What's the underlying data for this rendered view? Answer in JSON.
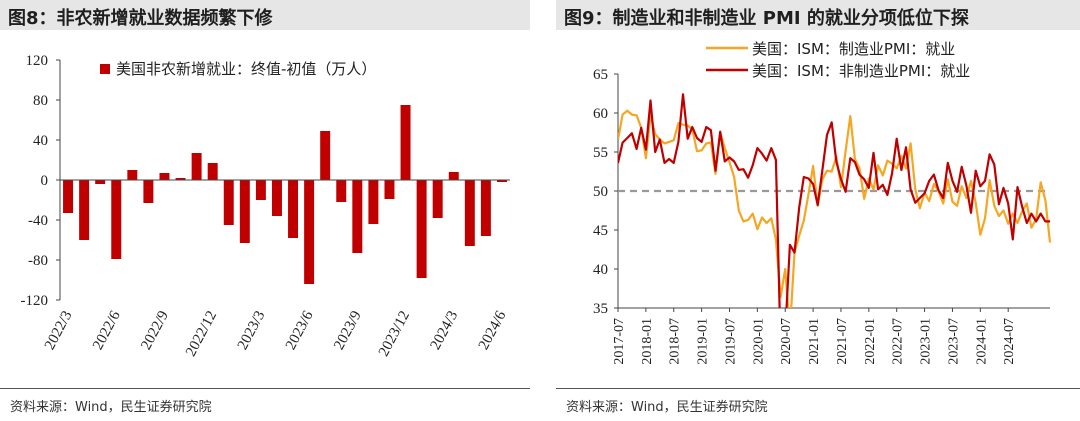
{
  "chart_data": [
    {
      "type": "bar",
      "title": "图8：非农新增就业数据频繁下修",
      "legend": "美国非农新增就业：终值-初值（万人）",
      "legend_position": "top",
      "source": "资料来源：Wind，民生证券研究院",
      "ylim": [
        -120,
        120
      ],
      "yticks": [
        "120",
        "80",
        "40",
        "0",
        "-40",
        "-80",
        "-120"
      ],
      "color": "#c00000",
      "categories": [
        "2022/3",
        "2022/4",
        "2022/5",
        "2022/6",
        "2022/7",
        "2022/8",
        "2022/9",
        "2022/10",
        "2022/11",
        "2022/12",
        "2023/1",
        "2023/2",
        "2023/3",
        "2023/4",
        "2023/5",
        "2023/6",
        "2023/7",
        "2023/8",
        "2023/9",
        "2023/10",
        "2023/11",
        "2023/12",
        "2024/1",
        "2024/2",
        "2024/3",
        "2024/4",
        "2024/5",
        "2024/6"
      ],
      "x_tick_labels": [
        "2022/3",
        "2022/6",
        "2022/9",
        "2022/12",
        "2023/3",
        "2023/6",
        "2023/9",
        "2023/12",
        "2024/3",
        "2024/6"
      ],
      "values": [
        -33,
        -60,
        -4,
        -79,
        10,
        -23,
        7,
        2,
        27,
        17,
        -45,
        -63,
        -20,
        -36,
        -58,
        -104,
        49,
        -22,
        -73,
        -44,
        -19,
        75,
        -98,
        -38,
        8,
        -66,
        -56,
        -2
      ]
    },
    {
      "type": "line",
      "title": "图9：制造业和非制造业 PMI 的就业分项低位下探",
      "source": "资料来源：Wind，民生证券研究院",
      "legend_position": "top",
      "ylim": [
        35,
        65
      ],
      "yticks": [
        "65",
        "60",
        "55",
        "50",
        "45",
        "40",
        "35"
      ],
      "reference_line": 50,
      "x_tick_labels": [
        "2017-07",
        "2018-01",
        "2018-07",
        "2019-01",
        "2019-07",
        "2020-01",
        "2020-07",
        "2021-01",
        "2021-07",
        "2022-01",
        "2022-07",
        "2023-01",
        "2023-07",
        "2024-01",
        "2024-07"
      ],
      "x_start": "2017-07",
      "series": [
        {
          "name": "美国：ISM：制造业PMI：就业",
          "color": "#f5a623",
          "values": [
            56.6,
            59.8,
            60.3,
            59.8,
            59.7,
            58.1,
            54.2,
            59.7,
            57.3,
            56.6,
            56.1,
            56.3,
            56.5,
            58.7,
            58.5,
            58.4,
            57.9,
            55.1,
            55.2,
            56.1,
            56.2,
            52.2,
            57.5,
            55.5,
            53.7,
            51.8,
            47.5,
            46.1,
            46.3,
            47.1,
            45.1,
            46.6,
            45.9,
            46.5,
            43.8,
            36.4,
            40.0,
            32.1,
            42.1,
            44.3,
            46.2,
            49.6,
            53.2,
            48.1,
            51.5,
            52.6,
            52.5,
            54.4,
            50.5,
            55.1,
            59.6,
            54.1,
            52.9,
            49.0,
            51.6,
            50.2,
            53.3,
            52.0,
            53.9,
            53.5,
            52.9,
            54.5,
            52.9,
            56.1,
            50.2,
            47.8,
            49.8,
            48.7,
            50.9,
            50.0,
            48.4,
            51.5,
            48.6,
            48.1,
            50.6,
            49.1,
            51.3,
            48.5,
            44.4,
            46.5,
            51.4,
            48.1,
            46.8,
            47.5,
            45.8,
            47.1,
            45.9,
            47.4,
            48.4,
            45.3,
            46.4,
            51.1,
            48.8,
            43.4
          ]
        },
        {
          "name": "美国：ISM：非制造业PMI：就业",
          "color": "#c00000",
          "values": [
            53.6,
            56.2,
            56.8,
            57.4,
            55.4,
            58.1,
            55.3,
            61.6,
            55.0,
            56.6,
            53.6,
            54.1,
            53.6,
            56.3,
            62.4,
            56.7,
            58.2,
            56.8,
            56.3,
            58.2,
            57.8,
            52.6,
            57.6,
            53.8,
            54.3,
            53.8,
            52.7,
            52.8,
            51.7,
            53.3,
            55.5,
            54.8,
            53.9,
            55.5,
            54.0,
            30.0,
            31.8,
            43.1,
            42.1,
            47.9,
            51.8,
            51.6,
            50.9,
            48.2,
            52.7,
            57.2,
            58.8,
            53.8,
            51.5,
            49.9,
            54.2,
            53.7,
            52.1,
            51.5,
            50.4,
            54.9,
            50.2,
            50.8,
            49.5,
            52.3,
            56.7,
            52.7,
            55.6,
            50.2,
            48.5,
            49.1,
            49.7,
            51.3,
            52.1,
            50.1,
            49.1,
            53.6,
            51.3,
            49.9,
            53.1,
            50.7,
            47.2,
            52.6,
            50.6,
            51.3,
            54.7,
            53.4,
            48.3,
            50.4,
            48.4,
            43.8,
            50.5,
            48.0,
            45.9,
            47.1,
            46.1,
            47.1,
            46.1,
            46.1
          ]
        }
      ]
    }
  ]
}
